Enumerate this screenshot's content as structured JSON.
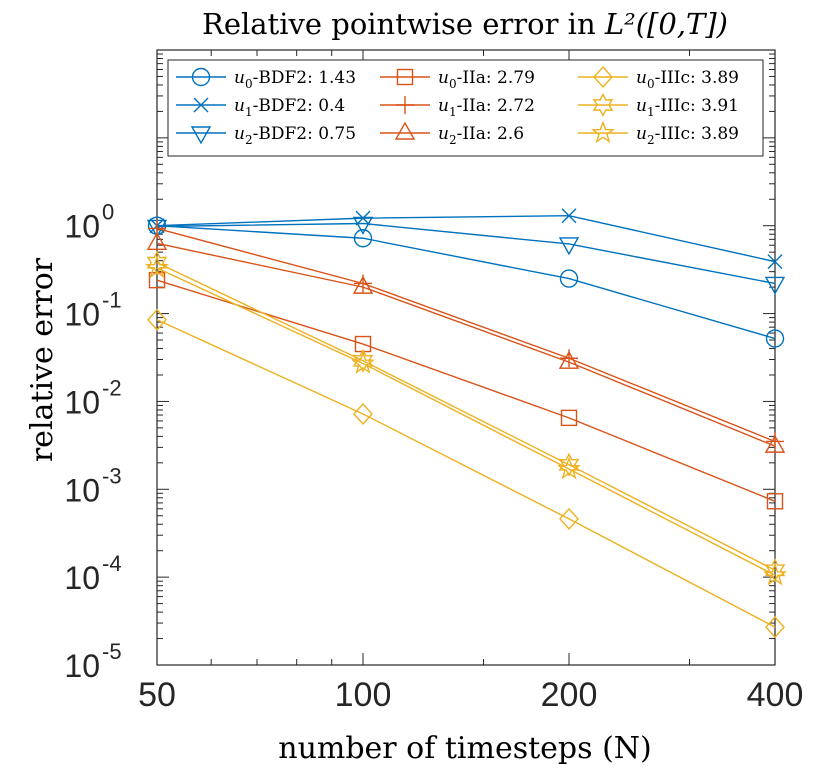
{
  "chart_data": {
    "type": "line",
    "title": "Relative pointwise error in",
    "title_math": "L²([0,T])",
    "xlabel": "number of timesteps (N)",
    "ylabel": "relative error",
    "x": [
      50,
      100,
      200,
      400
    ],
    "x_scale": "log2",
    "y_scale": "log10",
    "xlim": [
      50,
      400
    ],
    "ylim": [
      1e-05,
      100
    ],
    "x_ticks": [
      50,
      100,
      200,
      400
    ],
    "y_ticks": [
      {
        "value": 1e-05,
        "base": "10",
        "exp": "-5"
      },
      {
        "value": 0.0001,
        "base": "10",
        "exp": "-4"
      },
      {
        "value": 0.001,
        "base": "10",
        "exp": "-3"
      },
      {
        "value": 0.01,
        "base": "10",
        "exp": "-2"
      },
      {
        "value": 0.1,
        "base": "10",
        "exp": "-1"
      },
      {
        "value": 1,
        "base": "10",
        "exp": "0"
      }
    ],
    "legend_position": "top",
    "series": [
      {
        "name": "u0-BDF2",
        "var": "u",
        "sub": "0",
        "method": "-BDF2:",
        "rate": "1.43",
        "color": "#0072BD",
        "marker": "circle",
        "values": [
          1.0,
          0.72,
          0.25,
          0.052
        ]
      },
      {
        "name": "u1-BDF2",
        "var": "u",
        "sub": "1",
        "method": "-BDF2:",
        "rate": "0.4",
        "color": "#0072BD",
        "marker": "x",
        "values": [
          1.0,
          1.22,
          1.3,
          0.39
        ]
      },
      {
        "name": "u2-BDF2",
        "var": "u",
        "sub": "2",
        "method": "-BDF2:",
        "rate": "0.75",
        "color": "#0072BD",
        "marker": "triangle-down",
        "values": [
          0.98,
          1.06,
          0.62,
          0.22
        ]
      },
      {
        "name": "u0-IIa",
        "var": "u",
        "sub": "0",
        "method": "-IIa:",
        "rate": "2.79",
        "color": "#D95319",
        "marker": "square",
        "values": [
          0.24,
          0.045,
          0.0065,
          0.00073
        ]
      },
      {
        "name": "u1-IIa",
        "var": "u",
        "sub": "1",
        "method": "-IIa:",
        "rate": "2.72",
        "color": "#D95319",
        "marker": "plus",
        "values": [
          0.93,
          0.22,
          0.031,
          0.0035
        ]
      },
      {
        "name": "u2-IIa",
        "var": "u",
        "sub": "2",
        "method": "-IIa:",
        "rate": "2.6",
        "color": "#D95319",
        "marker": "triangle-up",
        "values": [
          0.63,
          0.2,
          0.028,
          0.0031
        ]
      },
      {
        "name": "u0-IIIc",
        "var": "u",
        "sub": "0",
        "method": "-IIIc:",
        "rate": "3.89",
        "color": "#EDB120",
        "marker": "diamond",
        "values": [
          0.085,
          0.0072,
          0.00046,
          2.7e-05
        ]
      },
      {
        "name": "u1-IIIc",
        "var": "u",
        "sub": "1",
        "method": "-IIIc:",
        "rate": "3.91",
        "color": "#EDB120",
        "marker": "hexagram",
        "values": [
          0.38,
          0.029,
          0.0019,
          0.00012
        ]
      },
      {
        "name": "u2-IIIc",
        "var": "u",
        "sub": "2",
        "method": "-IIIc:",
        "rate": "3.89",
        "color": "#EDB120",
        "marker": "pentagram",
        "values": [
          0.33,
          0.027,
          0.0017,
          0.000105
        ]
      }
    ]
  }
}
